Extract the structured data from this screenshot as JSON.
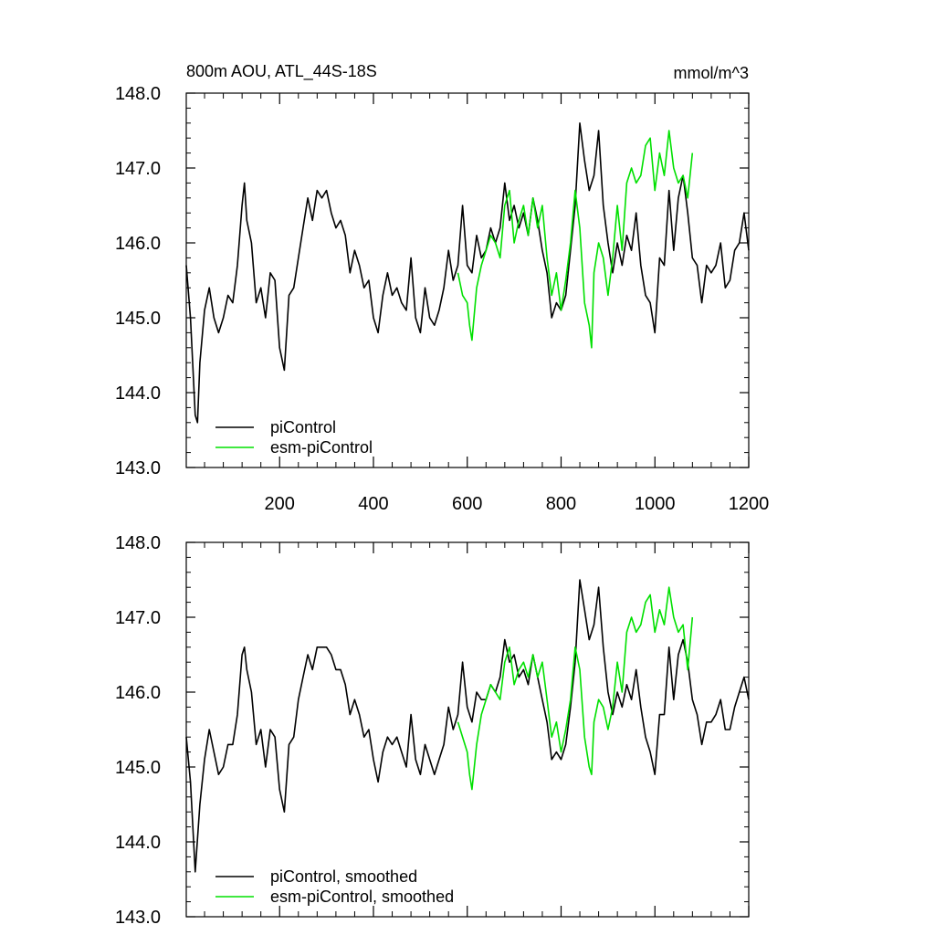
{
  "title_left": "800m AOU, ATL_44S-18S",
  "title_right": "mmol/m^3",
  "colors": {
    "piControl": "#000000",
    "esm_piControl": "#00e000"
  },
  "chart_data": [
    {
      "type": "line",
      "panel": "raw",
      "xlim": [
        1,
        1200
      ],
      "ylim": [
        143.0,
        148.0
      ],
      "x_ticks": [
        200,
        400,
        600,
        800,
        1000,
        1200
      ],
      "x_tick_labels": [
        "200",
        "400",
        "600",
        "800",
        "1000",
        "1200"
      ],
      "y_ticks": [
        143.0,
        144.0,
        145.0,
        146.0,
        147.0,
        148.0
      ],
      "y_tick_labels": [
        "143.0",
        "144.0",
        "145.0",
        "146.0",
        "147.0",
        "148.0"
      ],
      "grid": false,
      "legend_position": "bottom-left",
      "series": [
        {
          "name": "piControl",
          "color": "#000000",
          "x": [
            1,
            10,
            20,
            25,
            30,
            40,
            50,
            60,
            70,
            80,
            90,
            100,
            110,
            120,
            125,
            130,
            140,
            150,
            160,
            170,
            180,
            190,
            200,
            210,
            220,
            230,
            240,
            250,
            260,
            270,
            280,
            290,
            300,
            310,
            320,
            330,
            340,
            350,
            360,
            370,
            380,
            390,
            400,
            410,
            420,
            430,
            440,
            450,
            460,
            470,
            480,
            490,
            500,
            510,
            520,
            530,
            540,
            550,
            560,
            570,
            580,
            590,
            600,
            610,
            620,
            630,
            640,
            650,
            660,
            670,
            680,
            690,
            700,
            710,
            720,
            730,
            740,
            750,
            760,
            770,
            780,
            790,
            800,
            810,
            820,
            830,
            840,
            850,
            860,
            870,
            880,
            890,
            900,
            910,
            920,
            930,
            940,
            950,
            960,
            970,
            980,
            990,
            1000,
            1010,
            1020,
            1030,
            1040,
            1050,
            1060,
            1070,
            1080,
            1090,
            1100,
            1110,
            1120,
            1130,
            1140,
            1150,
            1160,
            1170,
            1180,
            1190,
            1200
          ],
          "y": [
            145.7,
            145.0,
            143.7,
            143.6,
            144.4,
            145.1,
            145.4,
            145.0,
            144.8,
            145.0,
            145.3,
            145.2,
            145.7,
            146.5,
            146.8,
            146.3,
            146.0,
            145.2,
            145.4,
            145.0,
            145.6,
            145.5,
            144.6,
            144.3,
            145.3,
            145.4,
            145.8,
            146.2,
            146.6,
            146.3,
            146.7,
            146.6,
            146.7,
            146.4,
            146.2,
            146.3,
            146.1,
            145.6,
            145.9,
            145.7,
            145.4,
            145.5,
            145.0,
            144.8,
            145.3,
            145.6,
            145.3,
            145.4,
            145.2,
            145.1,
            145.8,
            145.0,
            144.8,
            145.4,
            145.0,
            144.9,
            145.1,
            145.4,
            145.9,
            145.5,
            145.7,
            146.5,
            145.7,
            145.6,
            146.1,
            145.8,
            145.9,
            146.2,
            146.0,
            146.2,
            146.8,
            146.3,
            146.5,
            146.2,
            146.4,
            146.1,
            146.6,
            146.3,
            145.9,
            145.6,
            145.0,
            145.2,
            145.1,
            145.3,
            145.9,
            146.5,
            147.6,
            147.1,
            146.7,
            146.9,
            147.5,
            146.5,
            146.0,
            145.6,
            146.0,
            145.7,
            146.1,
            145.9,
            146.4,
            145.7,
            145.3,
            145.2,
            144.8,
            145.8,
            145.7,
            146.7,
            145.9,
            146.6,
            146.9,
            146.4,
            145.8,
            145.7,
            145.2,
            145.7,
            145.6,
            145.7,
            146.0,
            145.4,
            145.5,
            145.9,
            146.0,
            146.4,
            145.9
          ]
        },
        {
          "name": "esm-piControl",
          "color": "#00e000",
          "x": [
            580,
            590,
            600,
            605,
            610,
            620,
            630,
            640,
            650,
            660,
            670,
            680,
            690,
            700,
            710,
            720,
            730,
            740,
            750,
            760,
            770,
            780,
            790,
            800,
            810,
            820,
            830,
            840,
            850,
            860,
            865,
            870,
            880,
            890,
            900,
            910,
            920,
            930,
            940,
            950,
            960,
            970,
            980,
            990,
            1000,
            1010,
            1020,
            1030,
            1040,
            1050,
            1060,
            1070,
            1080
          ],
          "y": [
            145.6,
            145.3,
            145.2,
            144.9,
            144.7,
            145.4,
            145.7,
            145.9,
            146.1,
            146.0,
            145.8,
            146.5,
            146.7,
            146.0,
            146.3,
            146.5,
            146.1,
            146.6,
            146.2,
            146.5,
            145.8,
            145.3,
            145.6,
            145.1,
            145.5,
            146.0,
            146.7,
            146.2,
            145.2,
            144.9,
            144.6,
            145.6,
            146.0,
            145.8,
            145.3,
            145.8,
            146.5,
            145.9,
            146.8,
            147.0,
            146.8,
            146.9,
            147.3,
            147.4,
            146.7,
            147.2,
            146.9,
            147.5,
            147.0,
            146.8,
            146.9,
            146.6,
            147.2
          ]
        }
      ]
    },
    {
      "type": "line",
      "panel": "smoothed",
      "xlim": [
        1,
        1200
      ],
      "ylim": [
        143.0,
        148.0
      ],
      "y_ticks": [
        143.0,
        144.0,
        145.0,
        146.0,
        147.0,
        148.0
      ],
      "y_tick_labels": [
        "143.0",
        "144.0",
        "145.0",
        "146.0",
        "147.0",
        "148.0"
      ],
      "grid": false,
      "legend_position": "bottom-left",
      "series": [
        {
          "name": "piControl, smoothed",
          "color": "#000000",
          "x": [
            1,
            10,
            20,
            30,
            40,
            50,
            60,
            70,
            80,
            90,
            100,
            110,
            120,
            125,
            130,
            140,
            150,
            160,
            170,
            180,
            190,
            200,
            210,
            220,
            230,
            240,
            250,
            260,
            270,
            280,
            290,
            300,
            310,
            320,
            330,
            340,
            350,
            360,
            370,
            380,
            390,
            400,
            410,
            420,
            430,
            440,
            450,
            460,
            470,
            480,
            490,
            500,
            510,
            520,
            530,
            540,
            550,
            560,
            570,
            580,
            590,
            600,
            610,
            620,
            630,
            640,
            650,
            660,
            670,
            680,
            690,
            700,
            710,
            720,
            730,
            740,
            750,
            760,
            770,
            780,
            790,
            800,
            810,
            820,
            830,
            840,
            850,
            860,
            870,
            880,
            890,
            900,
            910,
            920,
            930,
            940,
            950,
            960,
            970,
            980,
            990,
            1000,
            1010,
            1020,
            1030,
            1040,
            1050,
            1060,
            1070,
            1080,
            1090,
            1100,
            1110,
            1120,
            1130,
            1140,
            1150,
            1160,
            1170,
            1180,
            1190,
            1200
          ],
          "y": [
            145.4,
            144.8,
            143.6,
            144.5,
            145.1,
            145.5,
            145.2,
            144.9,
            145.0,
            145.3,
            145.3,
            145.7,
            146.5,
            146.6,
            146.3,
            146.0,
            145.3,
            145.5,
            145.0,
            145.5,
            145.4,
            144.7,
            144.4,
            145.3,
            145.4,
            145.9,
            146.2,
            146.5,
            146.3,
            146.6,
            146.6,
            146.6,
            146.5,
            146.3,
            146.3,
            146.1,
            145.7,
            145.9,
            145.7,
            145.4,
            145.5,
            145.1,
            144.8,
            145.2,
            145.4,
            145.3,
            145.4,
            145.2,
            145.0,
            145.7,
            145.1,
            144.9,
            145.3,
            145.1,
            144.9,
            145.1,
            145.3,
            145.8,
            145.5,
            145.7,
            146.4,
            145.8,
            145.6,
            146.0,
            145.9,
            145.9,
            146.1,
            146.0,
            146.2,
            146.7,
            146.4,
            146.5,
            146.2,
            146.3,
            146.1,
            146.5,
            146.2,
            145.9,
            145.6,
            145.1,
            145.2,
            145.1,
            145.3,
            145.8,
            146.4,
            147.5,
            147.1,
            146.7,
            146.9,
            147.4,
            146.6,
            146.0,
            145.7,
            146.0,
            145.8,
            146.1,
            145.9,
            146.3,
            145.8,
            145.4,
            145.2,
            144.9,
            145.7,
            145.7,
            146.6,
            145.9,
            146.5,
            146.7,
            146.4,
            145.9,
            145.7,
            145.3,
            145.6,
            145.6,
            145.7,
            145.9,
            145.5,
            145.5,
            145.8,
            146.0,
            146.2,
            145.9
          ]
        },
        {
          "name": "esm-piControl, smoothed",
          "color": "#00e000",
          "x": [
            580,
            590,
            600,
            605,
            610,
            620,
            630,
            640,
            650,
            660,
            670,
            680,
            690,
            700,
            710,
            720,
            730,
            740,
            750,
            760,
            770,
            780,
            790,
            800,
            810,
            820,
            830,
            840,
            850,
            860,
            865,
            870,
            880,
            890,
            900,
            910,
            920,
            930,
            940,
            950,
            960,
            970,
            980,
            990,
            1000,
            1010,
            1020,
            1030,
            1040,
            1050,
            1060,
            1070,
            1080
          ],
          "y": [
            145.6,
            145.4,
            145.2,
            144.9,
            144.7,
            145.3,
            145.7,
            145.9,
            146.1,
            146.0,
            145.9,
            146.4,
            146.6,
            146.1,
            146.3,
            146.4,
            146.2,
            146.5,
            146.2,
            146.4,
            145.9,
            145.4,
            145.6,
            145.2,
            145.5,
            145.9,
            146.6,
            146.3,
            145.4,
            145.0,
            144.9,
            145.6,
            145.9,
            145.8,
            145.5,
            145.8,
            146.4,
            146.0,
            146.8,
            147.0,
            146.8,
            146.9,
            147.2,
            147.3,
            146.8,
            147.1,
            146.9,
            147.4,
            147.0,
            146.8,
            146.9,
            146.3,
            147.0
          ]
        }
      ]
    }
  ]
}
